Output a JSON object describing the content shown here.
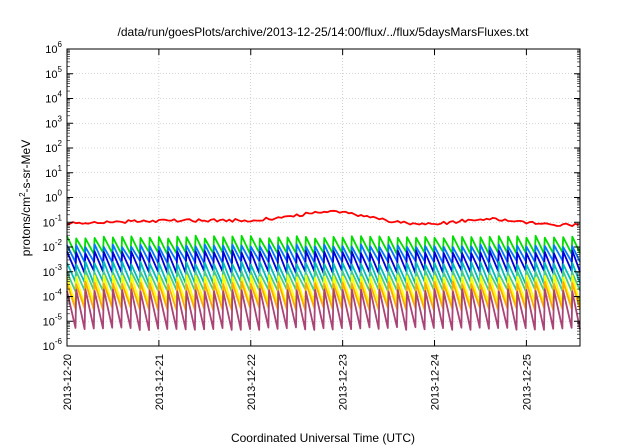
{
  "chart_data": {
    "type": "line",
    "title": "/data/run/goesPlots/archive/2013-12-25/14:00/flux/../flux/5daysMarsFluxes.txt",
    "xlabel": "Coordinated Universal Time (UTC)",
    "ylabel_parts": {
      "base": "protons/cm",
      "sup": "2",
      "rest": "-s-sr-MeV"
    },
    "x_range": [
      "2013-12-20T00:00",
      "2013-12-25T14:00"
    ],
    "x_ticks": [
      "2013-12-20",
      "2013-12-21",
      "2013-12-22",
      "2013-12-23",
      "2013-12-24",
      "2013-12-25"
    ],
    "y_scale": "log",
    "y_exponent_range": [
      -6,
      6
    ],
    "y_ticks": [
      {
        "base": "10",
        "exp": "-6"
      },
      {
        "base": "10",
        "exp": "-5"
      },
      {
        "base": "10",
        "exp": "-4"
      },
      {
        "base": "10",
        "exp": "-3"
      },
      {
        "base": "10",
        "exp": "-2"
      },
      {
        "base": "10",
        "exp": "-1"
      },
      {
        "base": "10",
        "exp": "0"
      },
      {
        "base": "10",
        "exp": "1"
      },
      {
        "base": "10",
        "exp": "2"
      },
      {
        "base": "10",
        "exp": "3"
      },
      {
        "base": "10",
        "exp": "4"
      },
      {
        "base": "10",
        "exp": "5"
      },
      {
        "base": "10",
        "exp": "6"
      }
    ],
    "grid": true,
    "sawtooth_period_hours": 2.4,
    "series": [
      {
        "color": "#ff0000",
        "low_log": -1.25,
        "high_log": -0.85,
        "jitter": 0.06,
        "bump": {
          "center": "2013-12-22T22:00",
          "width_hours": 14,
          "height_log": 0.45
        },
        "bump2": {
          "center": "2013-12-24T14:00",
          "width_hours": 12,
          "height_log": 0.3
        },
        "smooth": true
      },
      {
        "color": "#00dd00",
        "low_log": -2.25,
        "high_log": -1.6
      },
      {
        "color": "#0077ff",
        "low_log": -2.6,
        "high_log": -1.95
      },
      {
        "color": "#0000dd",
        "low_log": -3.0,
        "high_log": -2.2
      },
      {
        "color": "#00bbbb",
        "low_log": -3.45,
        "high_log": -2.65
      },
      {
        "color": "#44cc88",
        "low_log": -3.75,
        "high_log": -3.0
      },
      {
        "color": "#ffff00",
        "low_log": -4.3,
        "high_log": -3.2
      },
      {
        "color": "#ffaa00",
        "low_log": -4.5,
        "high_log": -3.45
      },
      {
        "color": "#aa4477",
        "low_log": -5.3,
        "high_log": -3.75
      }
    ]
  }
}
